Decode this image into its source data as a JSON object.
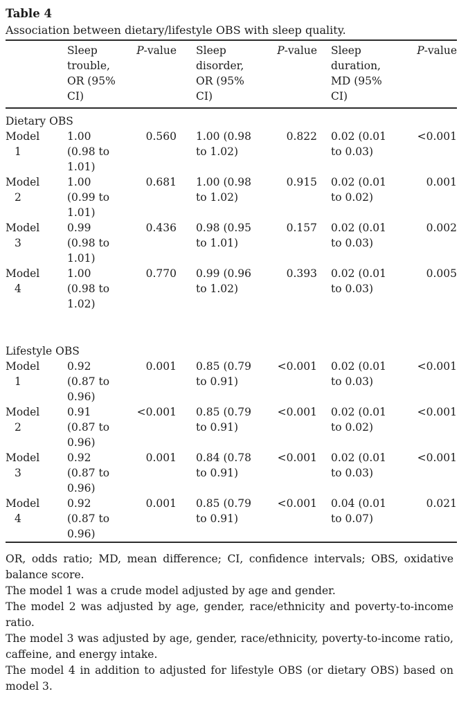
{
  "colors": {
    "background": "#ffffff",
    "text": "#1c1c1c",
    "rule": "#2b2b2b"
  },
  "title": "Table 4",
  "caption": "Association between dietary/lifestyle OBS with sleep quality.",
  "columns": {
    "sleep_trouble": "Sleep trouble, OR (95% CI)",
    "sleep_disorder": "Sleep disorder, OR (95% CI)",
    "sleep_duration": "Sleep duration, MD (95% CI)",
    "pvalue_italic": "P",
    "pvalue_rest": "-value"
  },
  "sections": [
    {
      "name": "Dietary OBS",
      "rows": [
        {
          "model": "Model 1",
          "cells": [
            "1.00 (0.98 to 1.01)",
            "0.560",
            "1.00 (0.98 to 1.02)",
            "0.822",
            "0.02 (0.01 to 0.03)",
            "<0.001"
          ]
        },
        {
          "model": "Model 2",
          "cells": [
            "1.00 (0.99 to 1.01)",
            "0.681",
            "1.00 (0.98 to 1.02)",
            "0.915",
            "0.02 (0.01 to 0.02)",
            "0.001"
          ]
        },
        {
          "model": "Model 3",
          "cells": [
            "0.99 (0.98 to 1.01)",
            "0.436",
            "0.98 (0.95 to 1.01)",
            "0.157",
            "0.02 (0.01 to 0.03)",
            "0.002"
          ]
        },
        {
          "model": "Model 4",
          "cells": [
            "1.00 (0.98 to 1.02)",
            "0.770",
            "0.99 (0.96 to 1.02)",
            "0.393",
            "0.02 (0.01 to 0.03)",
            "0.005"
          ]
        }
      ]
    },
    {
      "name": "Lifestyle OBS",
      "rows": [
        {
          "model": "Model 1",
          "cells": [
            "0.92 (0.87 to 0.96)",
            "0.001",
            "0.85 (0.79 to 0.91)",
            "<0.001",
            "0.02 (0.01 to 0.03)",
            "<0.001"
          ]
        },
        {
          "model": "Model 2",
          "cells": [
            "0.91 (0.87 to 0.96)",
            "<0.001",
            "0.85 (0.79 to 0.91)",
            "<0.001",
            "0.02 (0.01 to 0.02)",
            "<0.001"
          ]
        },
        {
          "model": "Model 3",
          "cells": [
            "0.92 (0.87 to 0.96)",
            "0.001",
            "0.84 (0.78 to 0.91)",
            "<0.001",
            "0.02 (0.01 to 0.03)",
            "<0.001"
          ]
        },
        {
          "model": "Model 4",
          "cells": [
            "0.92 (0.87 to 0.96)",
            "0.001",
            "0.85 (0.79 to 0.91)",
            "<0.001",
            "0.04 (0.01 to 0.07)",
            "0.021"
          ]
        }
      ]
    }
  ],
  "footnotes": [
    "OR, odds ratio; MD, mean difference; CI, confidence intervals; OBS, oxidative balance score.",
    "The model 1 was a crude model adjusted by age and gender.",
    "The model 2 was adjusted by age, gender, race/ethnicity and poverty-to-income ratio.",
    "The model 3 was adjusted by age, gender, race/ethnicity, poverty-to-income ratio, caffeine, and energy intake.",
    "The model 4 in addition to adjusted for lifestyle OBS (or dietary OBS) based on model 3."
  ]
}
